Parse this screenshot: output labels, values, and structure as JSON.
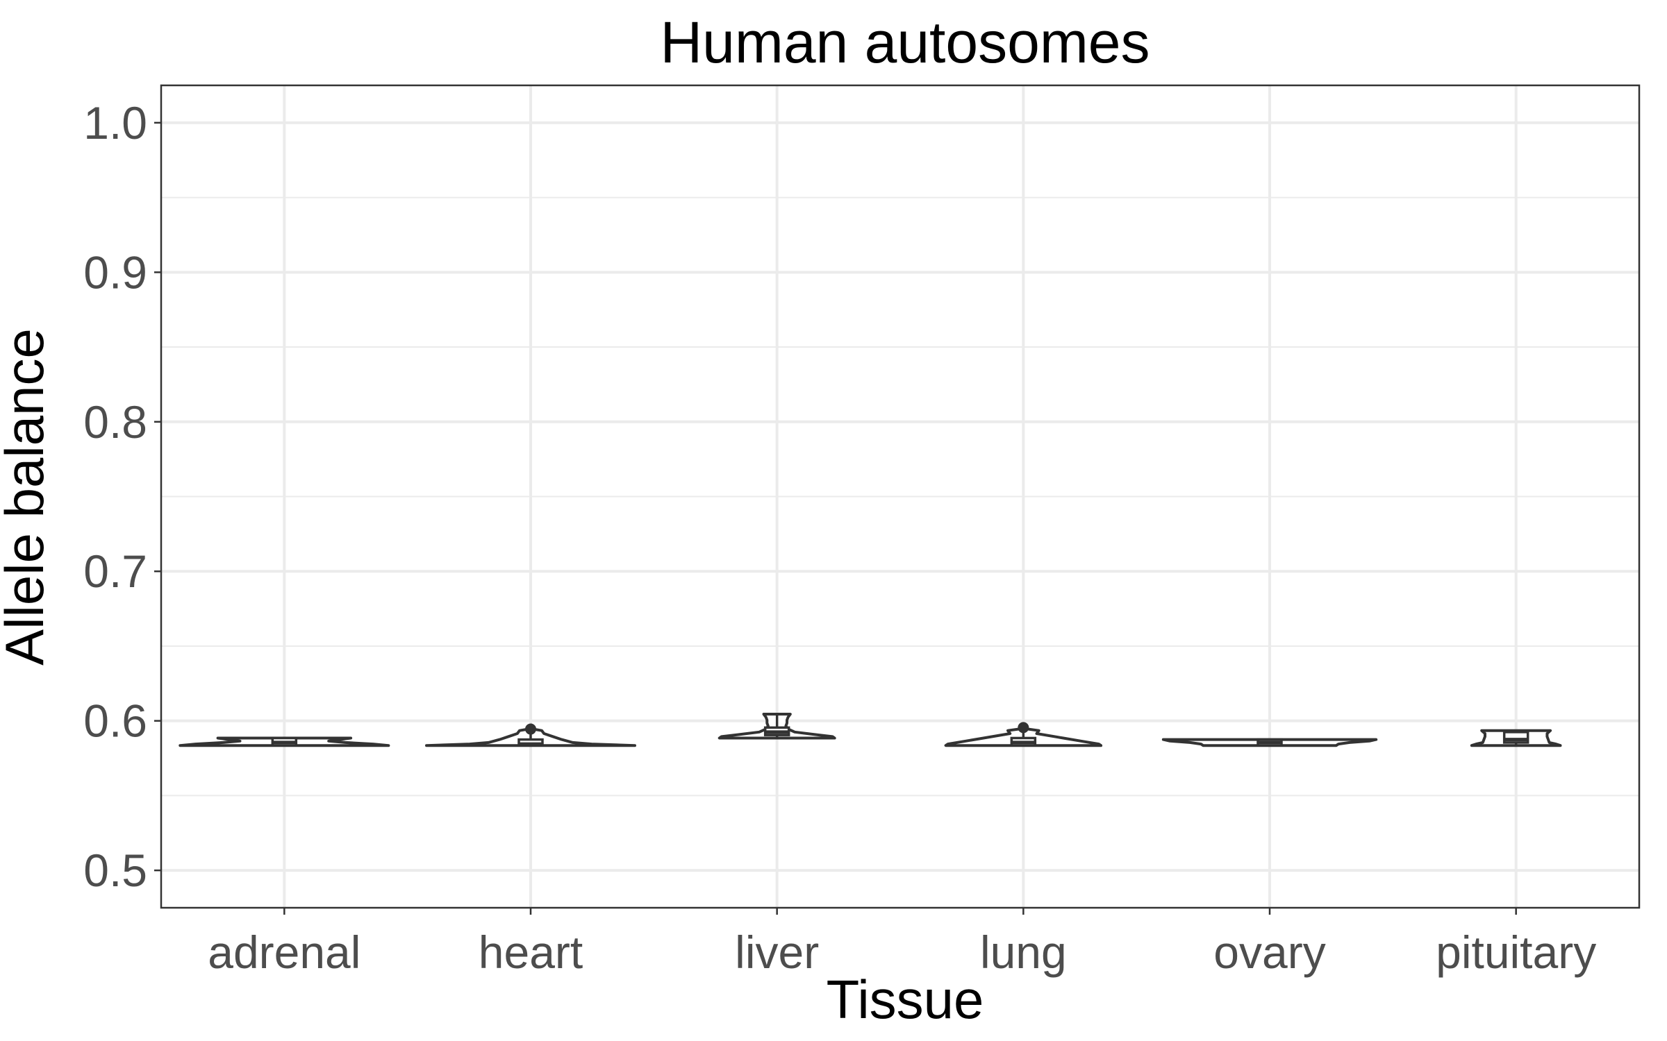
{
  "chart_data": {
    "type": "violin",
    "title": "Human autosomes",
    "xlabel": "Tissue",
    "ylabel": "Allele balance",
    "categories": [
      "adrenal",
      "heart",
      "liver",
      "lung",
      "ovary",
      "pituitary"
    ],
    "ylim": [
      0.475,
      1.025
    ],
    "yticks": [
      0.5,
      0.6,
      0.7,
      0.8,
      0.9,
      1.0
    ],
    "ytick_labels": [
      "0.5",
      "0.6",
      "0.7",
      "0.8",
      "0.9",
      "1.0"
    ],
    "grid": true,
    "colors": {
      "outline": "#333333",
      "fill": "#ffffff",
      "grid": "#ebebeb"
    },
    "groups": [
      {
        "tissue": "adrenal",
        "box": {
          "q1": 0.5835,
          "median": 0.5855,
          "q3": 0.5885,
          "whisker_low": 0.5835,
          "whisker_high": 0.5885
        },
        "outliers": [],
        "density": [
          [
            0.5835,
            0.94
          ],
          [
            0.5845,
            0.8
          ],
          [
            0.5855,
            0.55
          ],
          [
            0.5865,
            0.4
          ],
          [
            0.5875,
            0.5
          ],
          [
            0.5885,
            0.6
          ]
        ]
      },
      {
        "tissue": "heart",
        "box": {
          "q1": 0.5835,
          "median": 0.5845,
          "q3": 0.5875,
          "whisker_low": 0.5835,
          "whisker_high": 0.5915
        },
        "outliers": [
          0.5945
        ],
        "density": [
          [
            0.5835,
            0.94
          ],
          [
            0.5845,
            0.55
          ],
          [
            0.5855,
            0.38
          ],
          [
            0.5875,
            0.28
          ],
          [
            0.5895,
            0.2
          ],
          [
            0.5915,
            0.12
          ],
          [
            0.5935,
            0.1
          ],
          [
            0.5945,
            0.02
          ]
        ]
      },
      {
        "tissue": "liver",
        "box": {
          "q1": 0.5905,
          "median": 0.5925,
          "q3": 0.5955,
          "whisker_low": 0.5885,
          "whisker_high": 0.6045
        },
        "outliers": [],
        "density": [
          [
            0.5885,
            0.52
          ],
          [
            0.5895,
            0.5
          ],
          [
            0.5905,
            0.38
          ],
          [
            0.5925,
            0.16
          ],
          [
            0.5945,
            0.1
          ],
          [
            0.5965,
            0.08
          ],
          [
            0.5985,
            0.09
          ],
          [
            0.6005,
            0.09
          ],
          [
            0.6025,
            0.1
          ],
          [
            0.6045,
            0.12
          ]
        ]
      },
      {
        "tissue": "lung",
        "box": {
          "q1": 0.5835,
          "median": 0.5855,
          "q3": 0.5885,
          "whisker_low": 0.5835,
          "whisker_high": 0.5935
        },
        "outliers": [
          0.5955
        ],
        "density": [
          [
            0.5835,
            0.7
          ],
          [
            0.5845,
            0.68
          ],
          [
            0.5865,
            0.52
          ],
          [
            0.5885,
            0.36
          ],
          [
            0.5915,
            0.12
          ],
          [
            0.5935,
            0.14
          ],
          [
            0.5945,
            0.04
          ]
        ]
      },
      {
        "tissue": "ovary",
        "box": {
          "q1": 0.5835,
          "median": 0.5855,
          "q3": 0.5875,
          "whisker_low": 0.5835,
          "whisker_high": 0.5875
        },
        "outliers": [],
        "density": [
          [
            0.5835,
            0.6
          ],
          [
            0.5845,
            0.62
          ],
          [
            0.5855,
            0.72
          ],
          [
            0.5865,
            0.9
          ],
          [
            0.5875,
            0.96
          ]
        ]
      },
      {
        "tissue": "pituitary",
        "box": {
          "q1": 0.5855,
          "median": 0.5875,
          "q3": 0.5925,
          "whisker_low": 0.5835,
          "whisker_high": 0.5935
        },
        "outliers": [],
        "density": [
          [
            0.5835,
            0.4
          ],
          [
            0.5845,
            0.36
          ],
          [
            0.5855,
            0.3
          ],
          [
            0.5875,
            0.29
          ],
          [
            0.5895,
            0.28
          ],
          [
            0.5915,
            0.28
          ],
          [
            0.5935,
            0.31
          ]
        ]
      }
    ]
  }
}
